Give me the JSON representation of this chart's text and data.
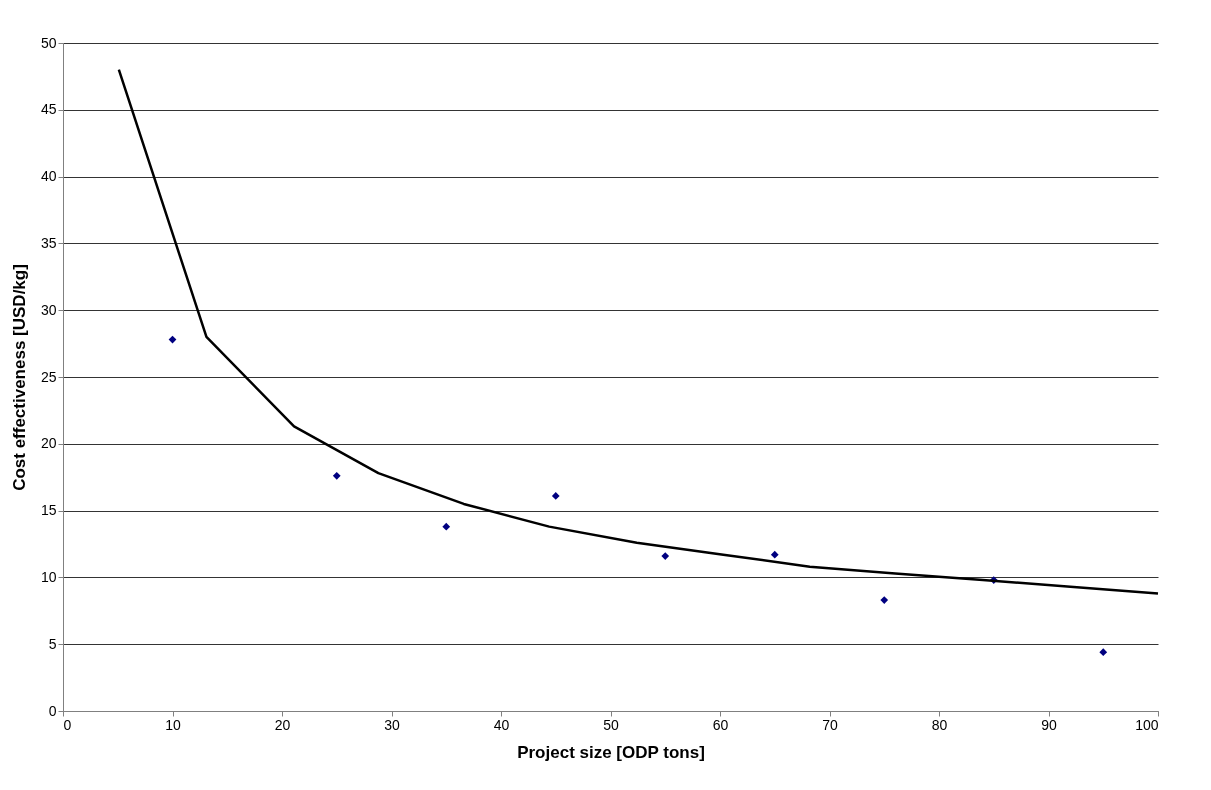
{
  "chart_data": {
    "type": "scatter",
    "xlabel": "Project size [ODP tons]",
    "ylabel": "Cost effectiveness [USD/kg]",
    "xlim": [
      0,
      100
    ],
    "xticks": [
      0,
      10,
      20,
      30,
      40,
      50,
      60,
      70,
      80,
      90,
      100
    ],
    "ylim": [
      0,
      50
    ],
    "yticks": [
      0,
      5,
      10,
      15,
      20,
      25,
      30,
      35,
      40,
      45,
      50
    ],
    "grid": "y",
    "series": [
      {
        "marker": "diamond",
        "color": "#000080",
        "x": [
          10,
          25,
          35,
          45,
          55,
          65,
          75,
          85,
          95
        ],
        "values": [
          27.8,
          17.6,
          13.8,
          16.1,
          11.6,
          11.7,
          8.3,
          9.8,
          4.4
        ]
      },
      {
        "type": "line",
        "marker": "none",
        "line_style": "solid",
        "color": "#000000",
        "x": [
          5.1,
          13.1,
          21.1,
          28.8,
          36.6,
          44.4,
          52.4,
          60.3,
          68.2,
          76,
          84,
          92,
          100
        ],
        "values": [
          48,
          28,
          21.3,
          17.8,
          15.5,
          13.8,
          12.6,
          11.7,
          10.8,
          10.3,
          9.8,
          9.3,
          8.8
        ]
      }
    ]
  }
}
